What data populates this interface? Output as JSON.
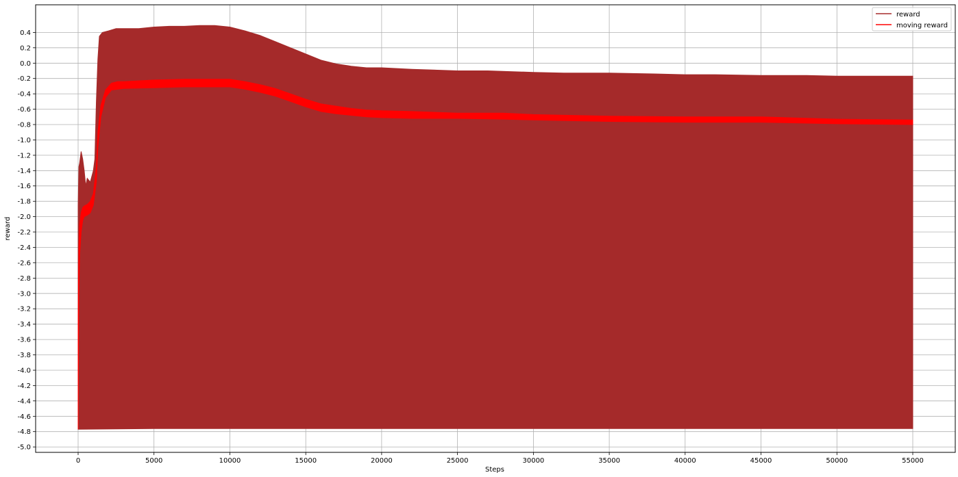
{
  "chart_data": {
    "type": "line",
    "title": "",
    "xlabel": "Steps",
    "ylabel": "reward",
    "xlim": [
      -2800,
      57800
    ],
    "ylim": [
      -5.07,
      0.76
    ],
    "grid": true,
    "legend_position": "top-right",
    "x_ticks": [
      0,
      5000,
      10000,
      15000,
      20000,
      25000,
      30000,
      35000,
      40000,
      45000,
      50000,
      55000
    ],
    "y_ticks": [
      -5.0,
      -4.8,
      -4.6,
      -4.4,
      -4.2,
      -4.0,
      -3.8,
      -3.6,
      -3.4,
      -3.2,
      -3.0,
      -2.8,
      -2.6,
      -2.4,
      -2.2,
      -2.0,
      -1.8,
      -1.6,
      -1.4,
      -1.2,
      -1.0,
      -0.8,
      -0.6,
      -0.4,
      -0.2,
      0.0,
      0.2,
      0.4
    ],
    "y_tick_labels": [
      "-5.0",
      "-4.8",
      "-4.6",
      "-4.4",
      "-4.2",
      "-4.0",
      "-3.8",
      "-3.6",
      "-3.4",
      "-3.2",
      "-3.0",
      "-2.8",
      "-2.6",
      "-2.4",
      "-2.2",
      "-2.0",
      "-1.8",
      "-1.6",
      "-1.4",
      "-1.2",
      "-1.0",
      "-0.8",
      "-0.6",
      "-0.4",
      "-0.2",
      "0.0",
      "0.2",
      "0.4"
    ],
    "series": [
      {
        "name": "reward",
        "color": "#a52a2a",
        "style": "oscillating band",
        "upper": {
          "x": [
            0,
            50,
            100,
            200,
            300,
            400,
            500,
            600,
            800,
            1000,
            1100,
            1200,
            1300,
            1400,
            1600,
            2000,
            2500,
            3000,
            4000,
            5000,
            6000,
            7000,
            8000,
            9000,
            10000,
            11000,
            12000,
            13000,
            14000,
            15000,
            16000,
            17000,
            18000,
            19000,
            20000,
            22000,
            25000,
            27000,
            30000,
            32000,
            35000,
            38000,
            40000,
            42000,
            45000,
            48000,
            50000,
            52000,
            55000
          ],
          "y": [
            -1.85,
            -1.35,
            -1.3,
            -1.15,
            -1.25,
            -1.4,
            -1.6,
            -1.5,
            -1.55,
            -1.4,
            -1.25,
            -0.5,
            0.05,
            0.35,
            0.4,
            0.42,
            0.45,
            0.45,
            0.45,
            0.47,
            0.48,
            0.48,
            0.49,
            0.49,
            0.47,
            0.42,
            0.36,
            0.28,
            0.2,
            0.12,
            0.04,
            -0.01,
            -0.04,
            -0.06,
            -0.06,
            -0.08,
            -0.1,
            -0.1,
            -0.12,
            -0.13,
            -0.13,
            -0.14,
            -0.15,
            -0.15,
            -0.16,
            -0.16,
            -0.17,
            -0.17,
            -0.17
          ]
        },
        "lower": {
          "x": [
            0,
            5000,
            10000,
            15000,
            20000,
            25000,
            30000,
            35000,
            40000,
            45000,
            50000,
            55000
          ],
          "y": [
            -4.77,
            -4.76,
            -4.76,
            -4.76,
            -4.76,
            -4.76,
            -4.76,
            -4.76,
            -4.76,
            -4.76,
            -4.76,
            -4.76
          ]
        }
      },
      {
        "name": "moving reward",
        "color": "#ff0000",
        "style": "band",
        "upper": {
          "x": [
            0,
            50,
            100,
            200,
            300,
            400,
            600,
            800,
            1000,
            1200,
            1300,
            1500,
            1800,
            2200,
            2600,
            3000,
            5000,
            7000,
            9000,
            10000,
            11000,
            12000,
            13000,
            14000,
            15000,
            16000,
            17000,
            18000,
            19000,
            20000,
            22000,
            25000,
            28000,
            30000,
            35000,
            40000,
            45000,
            50000,
            55000
          ],
          "y": [
            -3.4,
            -2.4,
            -2.1,
            -1.95,
            -1.88,
            -1.86,
            -1.84,
            -1.8,
            -1.7,
            -1.35,
            -0.9,
            -0.55,
            -0.35,
            -0.26,
            -0.24,
            -0.24,
            -0.22,
            -0.21,
            -0.21,
            -0.21,
            -0.24,
            -0.28,
            -0.33,
            -0.4,
            -0.47,
            -0.53,
            -0.56,
            -0.59,
            -0.61,
            -0.62,
            -0.63,
            -0.65,
            -0.65,
            -0.67,
            -0.69,
            -0.7,
            -0.7,
            -0.73,
            -0.74
          ]
        },
        "lower": {
          "x": [
            0,
            50,
            100,
            200,
            300,
            400,
            600,
            800,
            1000,
            1200,
            1300,
            1500,
            1800,
            2200,
            2600,
            3000,
            5000,
            7000,
            9000,
            10000,
            11000,
            12000,
            13000,
            14000,
            15000,
            16000,
            17000,
            18000,
            19000,
            20000,
            22000,
            25000,
            28000,
            30000,
            35000,
            40000,
            45000,
            50000,
            55000
          ],
          "y": [
            -4.77,
            -3.0,
            -2.5,
            -2.2,
            -2.05,
            -2.0,
            -1.98,
            -1.95,
            -1.85,
            -1.55,
            -1.1,
            -0.7,
            -0.45,
            -0.35,
            -0.34,
            -0.33,
            -0.32,
            -0.31,
            -0.31,
            -0.31,
            -0.34,
            -0.38,
            -0.43,
            -0.5,
            -0.57,
            -0.63,
            -0.66,
            -0.68,
            -0.7,
            -0.71,
            -0.72,
            -0.72,
            -0.73,
            -0.74,
            -0.76,
            -0.77,
            -0.77,
            -0.79,
            -0.8
          ]
        }
      }
    ]
  }
}
